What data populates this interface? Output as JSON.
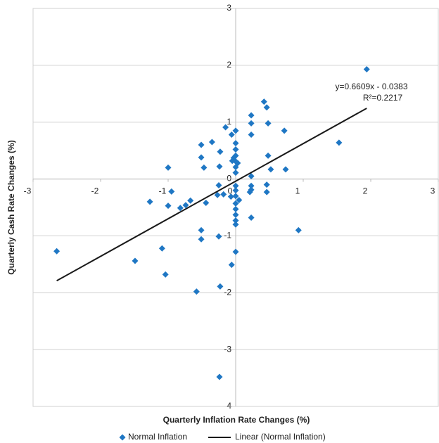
{
  "chart_data": {
    "type": "scatter",
    "x_label": "Quarterly Inflation Rate Changes (%)",
    "y_label": "Quarterly Cash Rate Changes (%)",
    "xlim": [
      -3,
      3
    ],
    "xticks": [
      -3,
      -2,
      -1,
      0,
      1,
      2,
      3
    ],
    "ylim": [
      -4,
      3
    ],
    "yticks": [
      -4,
      -3,
      -2,
      -1,
      0,
      1,
      2,
      3
    ],
    "grid": true,
    "series": [
      {
        "name": "Normal Inflation",
        "color": "#1f77c4",
        "x": [
          1.94,
          1.53,
          0.93,
          0.72,
          0.74,
          0.42,
          0.46,
          0.48,
          0.48,
          0.52,
          0.46,
          0.46,
          0.23,
          0.23,
          0.23,
          0.23,
          0.23,
          0.21,
          0.23,
          0.23,
          -0.15,
          -0.06,
          0,
          0,
          0,
          0,
          0,
          0,
          0,
          0,
          0,
          0,
          0,
          0,
          0,
          0,
          0,
          -0.03,
          0.03,
          0.05,
          -0.05,
          -0.07,
          -0.35,
          -0.51,
          -0.23,
          -0.51,
          -0.24,
          -0.47,
          -1.0,
          -0.95,
          -0.25,
          -0.27,
          -0.18,
          -0.44,
          -0.67,
          -0.74,
          -0.82,
          -1.0,
          -1.27,
          -0.51,
          -0.51,
          -0.25,
          0,
          -0.06,
          -1.09,
          -1.49,
          -1.04,
          -0.58,
          -0.23,
          -2.65,
          -0.24
        ],
        "values": [
          1.93,
          0.64,
          -0.9,
          0.85,
          0.17,
          1.36,
          1.26,
          0.98,
          0.41,
          0.17,
          -0.1,
          -0.23,
          1.12,
          0.98,
          0.78,
          0.05,
          -0.12,
          -0.23,
          -0.19,
          -0.68,
          0.91,
          0.78,
          0.85,
          0.63,
          0.52,
          0.41,
          0.31,
          0.21,
          0.11,
          -0.12,
          -0.2,
          -0.3,
          -0.43,
          -0.53,
          -0.63,
          -0.73,
          -0.8,
          0.37,
          0.28,
          -0.37,
          0.32,
          -0.31,
          0.65,
          0.6,
          0.48,
          0.38,
          0.22,
          0.2,
          0.2,
          -0.22,
          -0.11,
          -0.28,
          -0.27,
          -0.42,
          -0.38,
          -0.46,
          -0.51,
          -0.47,
          -0.4,
          -0.9,
          -1.06,
          -1.01,
          -1.28,
          -1.51,
          -1.22,
          -1.44,
          -1.68,
          -1.98,
          -1.89,
          -1.27,
          -3.48
        ]
      }
    ],
    "trendline": {
      "name": "Linear (Normal Inflation)",
      "color": "#1a1a1a",
      "slope": 0.6609,
      "intercept": -0.0383,
      "equation": "y=0.6609x - 0.0383",
      "r_squared": "R²=0.2217"
    }
  }
}
